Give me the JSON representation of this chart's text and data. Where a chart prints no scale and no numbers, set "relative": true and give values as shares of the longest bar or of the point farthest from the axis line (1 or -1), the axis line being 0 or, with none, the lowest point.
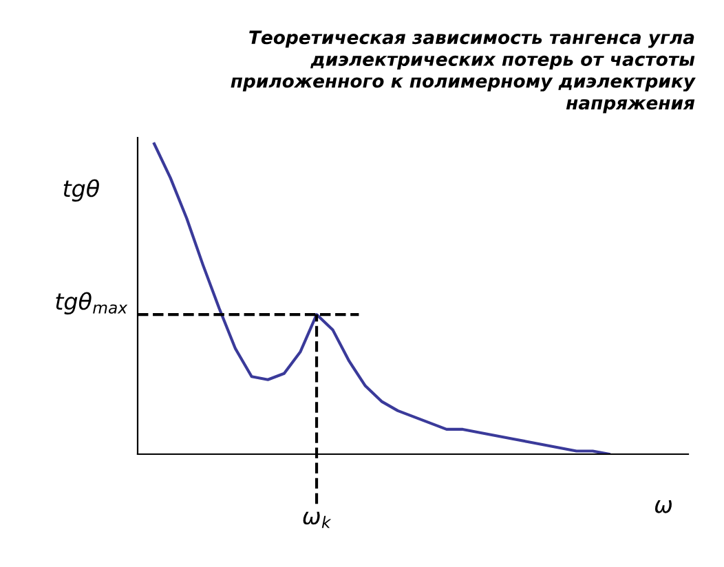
{
  "chart_data": {
    "type": "line",
    "title": "Теоретическая зависимость тангенса угла\nдиэлектрических потерь от частоты\nприложенного к полимерному диэлектрику\nнапряжения",
    "xlabel": "ω",
    "ylabel": "tgθ",
    "relative": true,
    "line_style": "solid",
    "categories": [
      null,
      null,
      null,
      null,
      null,
      null,
      null,
      null,
      null,
      null,
      null,
      null,
      null,
      null,
      null,
      null,
      null,
      null,
      null,
      null,
      null,
      null,
      null,
      null,
      null,
      null,
      null,
      null,
      null
    ],
    "series": [
      {
        "color": "#3a3a9a",
        "values": [
          1.0,
          0.89,
          0.76,
          0.61,
          0.47,
          0.34,
          0.25,
          0.24,
          0.26,
          0.33,
          0.45,
          0.4,
          0.3,
          0.22,
          0.17,
          0.14,
          0.12,
          0.1,
          0.08,
          0.08,
          0.07,
          0.06,
          0.05,
          0.04,
          0.03,
          0.02,
          0.01,
          0.01,
          0.0
        ]
      }
    ],
    "ref_lines": [
      {
        "axis": "y",
        "value": 0.45,
        "label": "tgθ$_{max}$",
        "line_style": "dashed",
        "color": "#000000"
      }
    ],
    "annotations": [
      {
        "text": "ω$_{k}$",
        "y": 0.45
      }
    ]
  }
}
